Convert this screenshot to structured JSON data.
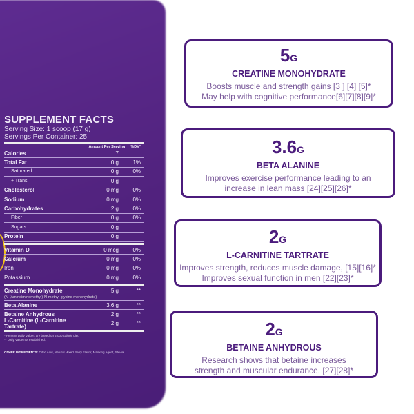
{
  "facts": {
    "title": "SUPPLEMENT FACTS",
    "serving_size": "Serving Size: 1 scoop (17 g)",
    "servings": "Servings Per Container: 25",
    "col_amount": "Amount Per Serving",
    "col_dv": "%DV*",
    "rows": [
      {
        "name": "Calories",
        "amount": "7",
        "dv": ""
      },
      {
        "name": "Total Fat",
        "amount": "0 g",
        "dv": "1%"
      },
      {
        "name": "Saturated",
        "amount": "0 g",
        "dv": "0%",
        "sub": true
      },
      {
        "name": "+ Trans",
        "amount": "0 g",
        "dv": "",
        "sub": true
      },
      {
        "name": "Cholesterol",
        "amount": "0 mg",
        "dv": "0%"
      },
      {
        "name": "Sodium",
        "amount": "0 mg",
        "dv": "0%"
      },
      {
        "name": "Carbohydrates",
        "amount": "2 g",
        "dv": "0%"
      },
      {
        "name": "Fiber",
        "amount": "0 g",
        "dv": "0%",
        "sub": true
      },
      {
        "name": "Sugars",
        "amount": "0 g",
        "dv": "",
        "sub": true
      },
      {
        "name": "Protein",
        "amount": "0 g",
        "dv": ""
      }
    ],
    "vitamins": [
      {
        "name": "Vitamin D",
        "amount": "0 mcg",
        "dv": "0%"
      },
      {
        "name": "Calcium",
        "amount": "0 mg",
        "dv": "0%"
      },
      {
        "name": "Iron",
        "amount": "0 mg",
        "dv": "0%"
      },
      {
        "name": "Potassium",
        "amount": "0 mg",
        "dv": "0%"
      }
    ],
    "creatine": {
      "name": "Creatine Monohydrate",
      "amount": "5 g",
      "dv": "**",
      "note": "(N-(Aminoiminomethyl)-N-methyl glycine monohydrate)"
    },
    "actives": [
      {
        "name": "Beta Alanine",
        "amount": "3.6 g",
        "dv": "**"
      },
      {
        "name": "Betaine Anhydrous",
        "amount": "2 g",
        "dv": "**"
      },
      {
        "name": "L-Carnitine (L-Carnitine Tartrate)",
        "amount": "2 g",
        "dv": "**"
      }
    ],
    "foot1": "* Percent Daily Values are based on 2,000 calorie diet.",
    "foot2": "** Daily Value not established.",
    "other_label": "OTHER INGREDIENTS:",
    "other": " Citric Acid, Natural Mixed Berry Flavor, Masking Agent, Stevia"
  },
  "cards": [
    {
      "amount": "5",
      "unit": "G",
      "name": "CREATINE MONOHYDRATE",
      "lines": [
        "Boosts muscle and strength gains [3 ] [4] [5]*",
        "May help with cognitive performance[6][7][8][9]*"
      ]
    },
    {
      "amount": "3.6",
      "unit": "G",
      "name": "BETA ALANINE",
      "lines": [
        "Improves exercise performance leading to an",
        "increase in lean mass [24][25][26]*"
      ]
    },
    {
      "amount": "2",
      "unit": "G",
      "name": "L-CARNITINE TARTRATE",
      "lines": [
        "Improves strength, reduces muscle damage, [15][16]*",
        "Improves sexual function in men [22][23]*"
      ]
    },
    {
      "amount": "2",
      "unit": "G",
      "name": "BETAINE ANHYDROUS",
      "lines": [
        "Research shows that betaine increases",
        "strength and muscular endurance. [27][28]*"
      ]
    }
  ],
  "colors": {
    "brand": "#4b1b7c",
    "bag": "#5a2a8c"
  }
}
